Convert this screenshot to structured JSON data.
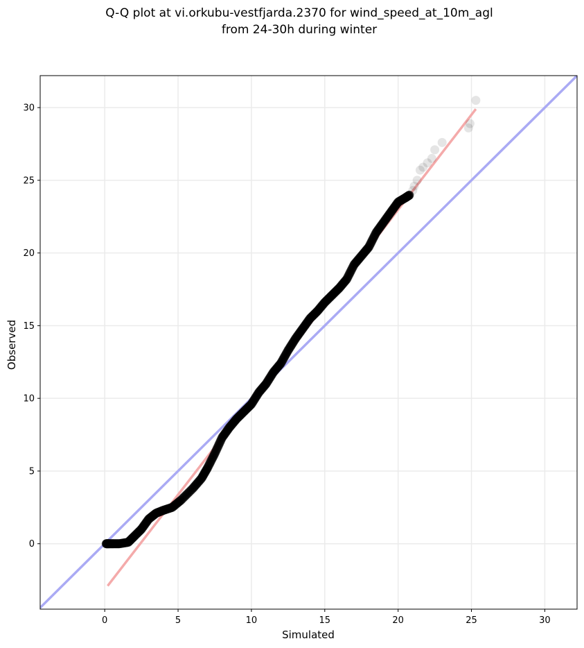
{
  "chart_data": {
    "type": "scatter",
    "title": [
      "Q-Q plot at vi.orkubu-vestfjarda.2370 for wind_speed_at_10m_agl",
      "from 24-30h during winter"
    ],
    "xlabel": "Simulated",
    "ylabel": "Observed",
    "xlim": [
      -4.4,
      32.2
    ],
    "ylim": [
      -4.5,
      32.2
    ],
    "xticks": [
      0,
      5,
      10,
      15,
      20,
      25,
      30
    ],
    "yticks": [
      0,
      5,
      10,
      15,
      20,
      25,
      30
    ],
    "grid": true,
    "colors": {
      "points": "#000000",
      "identity_line": "#aaaaf4",
      "fit_line": "#f4aaaa",
      "grid": "#ebebeb"
    },
    "identity_line": {
      "x": [
        -4.4,
        32.2
      ],
      "y": [
        -4.4,
        32.2
      ]
    },
    "fit_line": {
      "x": [
        0.2,
        25.3
      ],
      "y": [
        -2.9,
        29.9
      ]
    },
    "quantile_curve": {
      "x": [
        0.1,
        0.3,
        0.6,
        1.0,
        1.6,
        2.0,
        2.5,
        3.0,
        3.5,
        4.0,
        4.6,
        5.2,
        6.0,
        6.6,
        7.0,
        7.5,
        8.0,
        8.5,
        9.0,
        9.5,
        10.0,
        10.5,
        11.0,
        11.5,
        12.0,
        12.5,
        13.0,
        13.5,
        14.0,
        14.5,
        15.0,
        15.5,
        16.0,
        16.5,
        17.0,
        17.5,
        18.0,
        18.5,
        19.0,
        19.5,
        20.0,
        20.5,
        20.8
      ],
      "y": [
        0.0,
        0.0,
        0.0,
        0.0,
        0.1,
        0.5,
        1.0,
        1.7,
        2.1,
        2.3,
        2.5,
        3.0,
        3.8,
        4.5,
        5.2,
        6.2,
        7.3,
        8.0,
        8.6,
        9.1,
        9.6,
        10.4,
        11.0,
        11.8,
        12.4,
        13.3,
        14.1,
        14.8,
        15.5,
        16.0,
        16.6,
        17.1,
        17.6,
        18.2,
        19.2,
        19.8,
        20.4,
        21.4,
        22.1,
        22.8,
        23.5,
        23.8,
        24.0
      ]
    },
    "tail_points": {
      "x": [
        21.0,
        21.1,
        21.3,
        21.5,
        21.7,
        22.0,
        22.3,
        22.5,
        23.0,
        24.8,
        24.9,
        25.3
      ],
      "y": [
        24.3,
        24.6,
        25.0,
        25.7,
        25.9,
        26.2,
        26.5,
        27.1,
        27.6,
        28.6,
        28.9,
        30.5
      ]
    }
  }
}
